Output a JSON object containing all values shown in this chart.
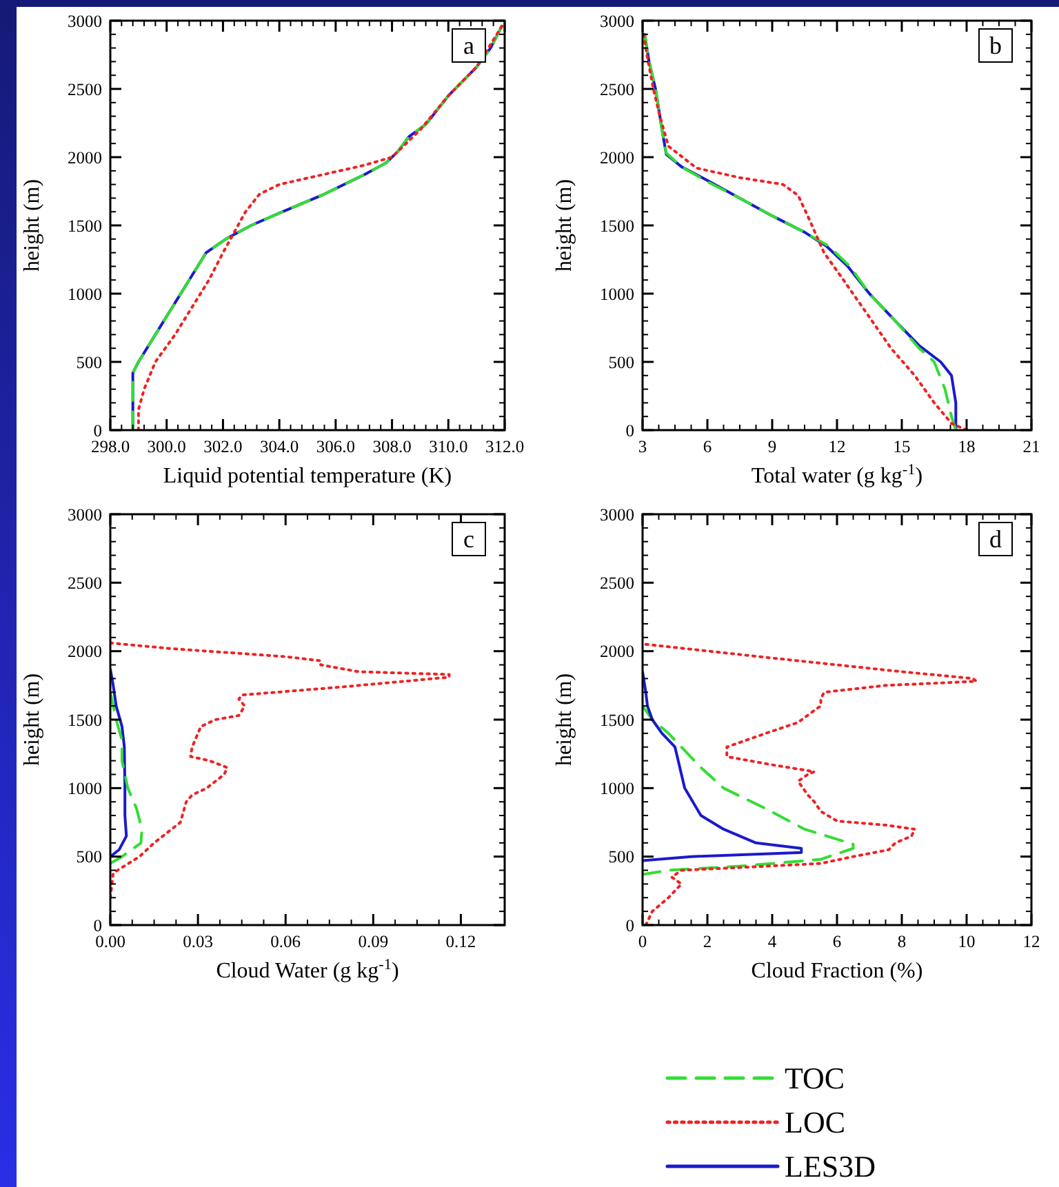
{
  "chart_data": [
    {
      "type": "line",
      "annotations": [
        "a"
      ],
      "xlabel": "Liquid potential temperature (K)",
      "ylabel": "height (m)",
      "xlim": [
        298,
        312
      ],
      "xticks": [
        {
          "value": 298,
          "label": "298.0"
        },
        {
          "value": 300,
          "label": "300.0"
        },
        {
          "value": 302,
          "label": "302.0"
        },
        {
          "value": 304,
          "label": "304.0"
        },
        {
          "value": 306,
          "label": "306.0"
        },
        {
          "value": 308,
          "label": "308.0"
        },
        {
          "value": 310,
          "label": "310.0"
        },
        {
          "value": 312,
          "label": "312.0"
        }
      ],
      "ylim": [
        0,
        3000
      ],
      "yticks": [
        0,
        500,
        1000,
        1500,
        2000,
        2500,
        3000
      ],
      "series": [
        {
          "color": "#1a1acc",
          "line_style": "solid",
          "x": [
            298.8,
            298.8,
            298.8,
            299.0,
            299.6,
            300.2,
            300.8,
            301.4,
            302.1,
            303.0,
            304.0,
            305.5,
            307.0,
            307.8,
            308.2,
            308.6,
            309.2,
            310.0,
            311.0,
            311.5,
            311.9
          ],
          "values": [
            0,
            200,
            420,
            500,
            700,
            900,
            1100,
            1300,
            1400,
            1500,
            1590,
            1720,
            1870,
            1960,
            2040,
            2150,
            2240,
            2450,
            2660,
            2800,
            2960
          ]
        },
        {
          "color": "#33dd33",
          "line_style": "dashed",
          "x": [
            298.8,
            298.8,
            298.8,
            299.0,
            299.6,
            300.2,
            300.8,
            301.4,
            302.1,
            303.0,
            304.0,
            305.5,
            307.0,
            307.8,
            308.2,
            308.6,
            309.2,
            310.0,
            311.0,
            311.5,
            311.9
          ],
          "values": [
            0,
            200,
            420,
            500,
            700,
            900,
            1100,
            1300,
            1400,
            1500,
            1590,
            1720,
            1870,
            1960,
            2040,
            2150,
            2240,
            2450,
            2660,
            2800,
            2960
          ]
        },
        {
          "color": "#ee2222",
          "line_style": "dotted",
          "x": [
            299.0,
            299.0,
            299.2,
            299.6,
            300.3,
            300.9,
            301.5,
            302.0,
            302.4,
            302.8,
            303.3,
            304.0,
            305.5,
            307.0,
            308.0,
            308.5,
            309.0,
            310.0,
            311.0,
            311.9
          ],
          "values": [
            0,
            150,
            300,
            500,
            700,
            900,
            1100,
            1300,
            1450,
            1600,
            1730,
            1800,
            1870,
            1940,
            2000,
            2100,
            2200,
            2450,
            2660,
            2960
          ]
        }
      ]
    },
    {
      "type": "line",
      "annotations": [
        "b"
      ],
      "xlabel": "Total water (g kg$^{-1}$)",
      "ylabel": "height (m)",
      "xlim": [
        3,
        21
      ],
      "xticks": [
        3,
        6,
        9,
        12,
        15,
        18,
        21
      ],
      "ylim": [
        0,
        3000
      ],
      "yticks": [
        0,
        500,
        1000,
        1500,
        2000,
        2500,
        3000
      ],
      "series": [
        {
          "color": "#1a1acc",
          "line_style": "solid",
          "x": [
            17.5,
            17.5,
            17.3,
            16.8,
            15.8,
            14.7,
            13.5,
            12.5,
            11.5,
            10.5,
            9,
            7.5,
            6,
            4.8,
            4.1,
            3.9,
            3.6,
            3.3,
            3.1
          ],
          "values": [
            0,
            200,
            400,
            500,
            620,
            800,
            1000,
            1200,
            1350,
            1450,
            1570,
            1700,
            1830,
            1930,
            2020,
            2200,
            2500,
            2700,
            2900
          ]
        },
        {
          "color": "#33dd33",
          "line_style": "dashed",
          "x": [
            17.5,
            17.3,
            17.0,
            16.5,
            15.8,
            14.7,
            13.5,
            12.6,
            11.6,
            10.5,
            9.0,
            7.5,
            6.0,
            4.8,
            4.1,
            3.9,
            3.6,
            3.3,
            3.1
          ],
          "values": [
            0,
            100,
            300,
            500,
            600,
            800,
            1000,
            1200,
            1350,
            1450,
            1570,
            1700,
            1820,
            1930,
            2030,
            2200,
            2500,
            2700,
            2900
          ]
        },
        {
          "color": "#ee2222",
          "line_style": "dotted",
          "x": [
            18.0,
            17.3,
            16.5,
            15.6,
            14.5,
            13.4,
            12.3,
            11.4,
            10.7,
            10.2,
            9.5,
            7.5,
            5.5,
            4.2,
            3.8,
            3.5,
            3.2,
            3.05
          ],
          "values": [
            0,
            50,
            200,
            400,
            600,
            850,
            1100,
            1300,
            1550,
            1720,
            1800,
            1850,
            1920,
            2080,
            2300,
            2500,
            2750,
            2900
          ]
        }
      ]
    },
    {
      "type": "line",
      "annotations": [
        "c"
      ],
      "xlabel": "Cloud Water (g kg$^{-1}$)",
      "ylabel": "height (m)",
      "xlim": [
        0,
        0.135
      ],
      "xticks": [
        {
          "value": 0,
          "label": "0.00"
        },
        {
          "value": 0.03,
          "label": "0.03"
        },
        {
          "value": 0.06,
          "label": "0.06"
        },
        {
          "value": 0.09,
          "label": "0.09"
        },
        {
          "value": 0.12,
          "label": "0.12"
        }
      ],
      "ylim": [
        0,
        3000
      ],
      "yticks": [
        0,
        500,
        1000,
        1500,
        2000,
        2500,
        3000
      ],
      "series": [
        {
          "color": "#1a1acc",
          "line_style": "solid",
          "x": [
            0,
            0.003,
            0.0055,
            0.005,
            0.005,
            0.0048,
            0.004,
            0.002,
            0.001,
            0
          ],
          "values": [
            500,
            550,
            650,
            800,
            1000,
            1300,
            1450,
            1600,
            1750,
            1870
          ]
        },
        {
          "color": "#33dd33",
          "line_style": "dashed",
          "x": [
            0,
            0.004,
            0.0105,
            0.0108,
            0.009,
            0.006,
            0.004,
            0.004,
            0.002,
            0.001,
            0
          ],
          "values": [
            450,
            500,
            600,
            700,
            850,
            1000,
            1200,
            1350,
            1500,
            1600,
            1700
          ]
        },
        {
          "color": "#ee2222",
          "line_style": "dotted",
          "x": [
            0,
            0.001,
            0.004,
            0.01,
            0.015,
            0.018,
            0.024,
            0.026,
            0.028,
            0.033,
            0.039,
            0.04,
            0.034,
            0.0275,
            0.028,
            0.031,
            0.036,
            0.044,
            0.046,
            0.044,
            0.045,
            0.08,
            0.116,
            0.116,
            0.085,
            0.072,
            0.072,
            0.06,
            0.02,
            0
          ],
          "values": [
            200,
            380,
            420,
            500,
            600,
            650,
            750,
            900,
            950,
            1000,
            1100,
            1150,
            1200,
            1230,
            1300,
            1450,
            1500,
            1530,
            1600,
            1650,
            1680,
            1740,
            1810,
            1830,
            1850,
            1900,
            1930,
            1960,
            2020,
            2060
          ]
        }
      ]
    },
    {
      "type": "line",
      "annotations": [
        "d"
      ],
      "xlabel": "Cloud Fraction (%)",
      "ylabel": "height (m)",
      "xlim": [
        0,
        12
      ],
      "xticks": [
        0,
        2,
        4,
        6,
        8,
        10,
        12
      ],
      "ylim": [
        0,
        3000
      ],
      "yticks": [
        0,
        500,
        1000,
        1500,
        2000,
        2500,
        3000
      ],
      "legend": "bottom",
      "series": [
        {
          "name": "TOC",
          "color": "#33dd33",
          "line_style": "dashed",
          "x": [
            0,
            0.8,
            3,
            5.5,
            6.5,
            6.5,
            5.0,
            3.8,
            2.5,
            1.8,
            1.2,
            0.8,
            0.3,
            0
          ],
          "values": [
            370,
            400,
            430,
            480,
            560,
            590,
            700,
            850,
            1000,
            1150,
            1300,
            1400,
            1500,
            1600
          ]
        },
        {
          "name": "LOC",
          "color": "#ee2222",
          "line_style": "dotted",
          "x": [
            0.1,
            0.3,
            0.8,
            1.2,
            0.9,
            1.2,
            3,
            5.5,
            6.5,
            7.6,
            7.8,
            8.3,
            8.4,
            7.5,
            6,
            5.5,
            5.3,
            5.1,
            4.8,
            5.1,
            5.3,
            4.0,
            2.6,
            2.6,
            3.8,
            4.8,
            5.2,
            5.5,
            5.5,
            5.6,
            7.5,
            10.3,
            10.2,
            8,
            4,
            0.1
          ],
          "values": [
            0,
            100,
            200,
            300,
            350,
            400,
            420,
            450,
            500,
            550,
            600,
            650,
            700,
            730,
            760,
            830,
            900,
            950,
            1050,
            1100,
            1120,
            1170,
            1230,
            1300,
            1400,
            1480,
            1550,
            1600,
            1650,
            1700,
            1750,
            1780,
            1800,
            1850,
            1950,
            2050
          ]
        },
        {
          "name": "LES3D",
          "color": "#1a1acc",
          "line_style": "solid",
          "x": [
            0,
            1.5,
            4.9,
            4.9,
            3.5,
            2.5,
            1.8,
            1.3,
            1.0,
            0.6,
            0.3,
            0.15,
            0.1,
            0
          ],
          "values": [
            470,
            500,
            530,
            560,
            600,
            700,
            800,
            1000,
            1300,
            1400,
            1500,
            1600,
            1700,
            1850
          ]
        }
      ]
    }
  ]
}
